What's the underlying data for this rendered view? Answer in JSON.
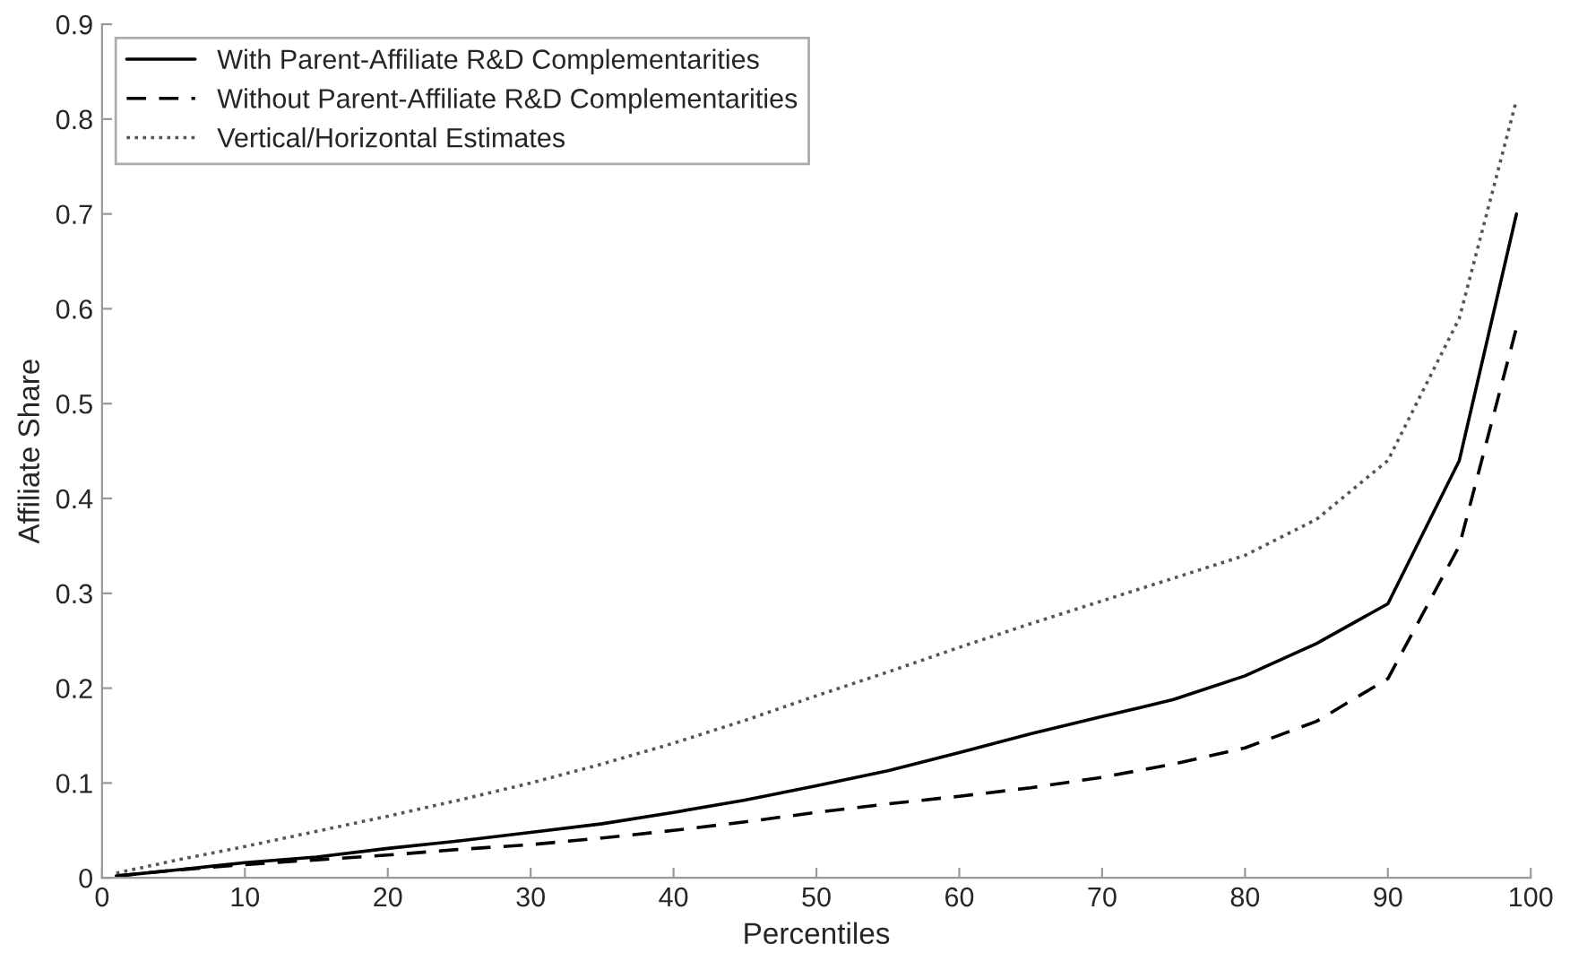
{
  "chart_data": {
    "type": "line",
    "xlabel": "Percentiles",
    "ylabel": "Affiliate Share",
    "x": [
      1,
      5,
      10,
      15,
      20,
      25,
      30,
      35,
      40,
      45,
      50,
      55,
      60,
      65,
      70,
      75,
      80,
      85,
      90,
      95,
      99
    ],
    "series": [
      {
        "name": "With Parent-Affiliate R&D Complementarities",
        "color": "#000000",
        "line_style": "solid",
        "values": [
          0.002,
          0.008,
          0.016,
          0.022,
          0.031,
          0.039,
          0.048,
          0.057,
          0.069,
          0.082,
          0.097,
          0.113,
          0.132,
          0.152,
          0.17,
          0.188,
          0.213,
          0.247,
          0.289,
          0.44,
          0.7
        ]
      },
      {
        "name": "Without Parent-Affiliate R&D Complementarities",
        "color": "#000000",
        "line_style": "dashed",
        "values": [
          0.002,
          0.008,
          0.014,
          0.019,
          0.024,
          0.03,
          0.035,
          0.042,
          0.05,
          0.059,
          0.069,
          0.078,
          0.086,
          0.095,
          0.106,
          0.12,
          0.137,
          0.165,
          0.21,
          0.35,
          0.58
        ]
      },
      {
        "name": "Vertical/Horizontal Estimates",
        "color": "#555555",
        "line_style": "dotted",
        "values": [
          0.005,
          0.018,
          0.033,
          0.049,
          0.065,
          0.082,
          0.1,
          0.12,
          0.142,
          0.166,
          0.192,
          0.217,
          0.243,
          0.268,
          0.292,
          0.316,
          0.34,
          0.378,
          0.44,
          0.59,
          0.82
        ]
      }
    ],
    "xlim": [
      0,
      100
    ],
    "xticks": [
      0,
      10,
      20,
      30,
      40,
      50,
      60,
      70,
      80,
      90,
      100
    ],
    "ylim": [
      0,
      0.9
    ],
    "yticks": [
      0,
      0.1,
      0.2,
      0.3,
      0.4,
      0.5,
      0.6,
      0.7,
      0.8,
      0.9
    ],
    "grid": false,
    "legend": "top left"
  }
}
